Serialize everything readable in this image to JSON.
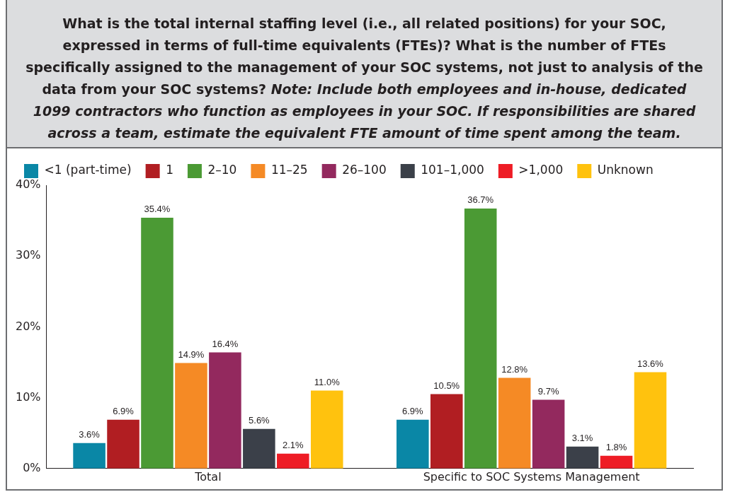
{
  "chart_data": {
    "type": "bar",
    "title": "What is the total internal staffing level (i.e., all related positions) for your SOC, expressed in terms of full-time equivalents (FTEs)? What is the number of FTEs specifically assigned to the management of your SOC systems, not just to analysis of the data from your SOC systems?",
    "subtitle": "Note: Include both employees and in-house, dedicated 1099 contractors who function as employees in your SOC. If responsibilities are shared across a team, estimate the equivalent FTE amount of time spent among the team.",
    "categories": [
      "Total",
      "Specific to SOC Systems Management"
    ],
    "series": [
      {
        "name": "<1 (part-time)",
        "color": "#0a87a6",
        "values": [
          3.6,
          6.9
        ],
        "value_labels": [
          "3.6%",
          "6.9%"
        ]
      },
      {
        "name": "1",
        "color": "#b11e22",
        "values": [
          6.9,
          10.5
        ],
        "value_labels": [
          "6.9%",
          "10.5%"
        ]
      },
      {
        "name": "2–10",
        "color": "#4b9a34",
        "values": [
          35.4,
          36.7
        ],
        "value_labels": [
          "35.4%",
          "36.7%"
        ]
      },
      {
        "name": "11–25",
        "color": "#f58a25",
        "values": [
          14.9,
          12.8
        ],
        "value_labels": [
          "14.9%",
          "12.8%"
        ]
      },
      {
        "name": "26–100",
        "color": "#93295e",
        "values": [
          16.4,
          9.7
        ],
        "value_labels": [
          "16.4%",
          "9.7%"
        ]
      },
      {
        "name": "101–1,000",
        "color": "#3b4049",
        "values": [
          5.6,
          3.1
        ],
        "value_labels": [
          "5.6%",
          "3.1%"
        ]
      },
      {
        "name": ">1,000",
        "color": "#ee1c25",
        "values": [
          2.1,
          1.8
        ],
        "value_labels": [
          "2.1%",
          "1.8%"
        ]
      },
      {
        "name": "Unknown",
        "color": "#ffc20e",
        "values": [
          11.0,
          13.6
        ],
        "value_labels": [
          "11.0%",
          "13.6%"
        ]
      }
    ],
    "ylim": [
      0,
      40
    ],
    "yticks": [
      {
        "value": 0,
        "label": "0%"
      },
      {
        "value": 10,
        "label": "10%"
      },
      {
        "value": 20,
        "label": "20%"
      },
      {
        "value": 30,
        "label": "30%"
      },
      {
        "value": 40,
        "label": "40%"
      }
    ],
    "grid": false,
    "legend": "top"
  }
}
